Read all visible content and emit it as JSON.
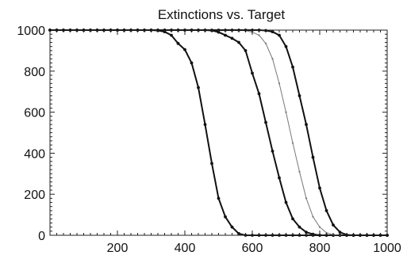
{
  "chart_data": {
    "type": "line",
    "title": "Extinctions vs. Target",
    "xlabel": "",
    "ylabel": "",
    "xlim": [
      0,
      1000
    ],
    "ylim": [
      0,
      1000
    ],
    "x_ticks": [
      200,
      400,
      600,
      800,
      1000
    ],
    "y_ticks": [
      0,
      200,
      400,
      600,
      800,
      1000
    ],
    "grid": false,
    "x": [
      0,
      20,
      40,
      60,
      80,
      100,
      120,
      140,
      160,
      180,
      200,
      220,
      240,
      260,
      280,
      300,
      320,
      340,
      360,
      380,
      400,
      420,
      440,
      460,
      480,
      500,
      520,
      540,
      560,
      580,
      600,
      620,
      640,
      660,
      680,
      700,
      720,
      740,
      760,
      780,
      800,
      820,
      840,
      860,
      880,
      900,
      920,
      940,
      960,
      980,
      1000
    ],
    "series": [
      {
        "color": "#111111",
        "marker": "dot",
        "values": [
          1000,
          1000,
          1000,
          1000,
          1000,
          1000,
          1000,
          1000,
          1000,
          1000,
          1000,
          1000,
          1000,
          1000,
          1000,
          1000,
          998,
          992,
          975,
          935,
          905,
          840,
          720,
          540,
          350,
          180,
          90,
          40,
          8,
          0,
          0,
          0,
          0,
          0,
          0,
          0,
          0,
          0,
          0,
          0,
          0,
          0,
          0,
          0,
          0,
          0,
          0,
          0,
          0,
          0,
          0
        ]
      },
      {
        "color": "#111111",
        "marker": "dot",
        "values": [
          1000,
          1000,
          1000,
          1000,
          1000,
          1000,
          1000,
          1000,
          1000,
          1000,
          1000,
          1000,
          1000,
          1000,
          1000,
          1000,
          1000,
          1000,
          1000,
          1000,
          1000,
          1000,
          1000,
          1000,
          998,
          990,
          975,
          960,
          940,
          900,
          790,
          690,
          550,
          410,
          280,
          160,
          80,
          40,
          15,
          5,
          0,
          0,
          0,
          0,
          0,
          0,
          0,
          0,
          0,
          0,
          0
        ]
      },
      {
        "color": "#777777",
        "marker": "small",
        "values": [
          1000,
          1000,
          1000,
          1000,
          1000,
          1000,
          1000,
          1000,
          1000,
          1000,
          1000,
          1000,
          1000,
          1000,
          1000,
          1000,
          1000,
          1000,
          1000,
          1000,
          1000,
          1000,
          1000,
          1000,
          1000,
          1000,
          1000,
          1000,
          1000,
          998,
          990,
          975,
          935,
          860,
          740,
          600,
          450,
          310,
          180,
          90,
          40,
          12,
          3,
          0,
          0,
          0,
          0,
          0,
          0,
          0,
          0
        ]
      },
      {
        "color": "#111111",
        "marker": "dot",
        "values": [
          1000,
          1000,
          1000,
          1000,
          1000,
          1000,
          1000,
          1000,
          1000,
          1000,
          1000,
          1000,
          1000,
          1000,
          1000,
          1000,
          1000,
          1000,
          1000,
          1000,
          1000,
          1000,
          1000,
          1000,
          1000,
          1000,
          1000,
          1000,
          1000,
          1000,
          1000,
          1000,
          998,
          992,
          975,
          920,
          820,
          680,
          540,
          380,
          230,
          120,
          50,
          15,
          2,
          0,
          0,
          0,
          0,
          0,
          0
        ]
      }
    ]
  }
}
